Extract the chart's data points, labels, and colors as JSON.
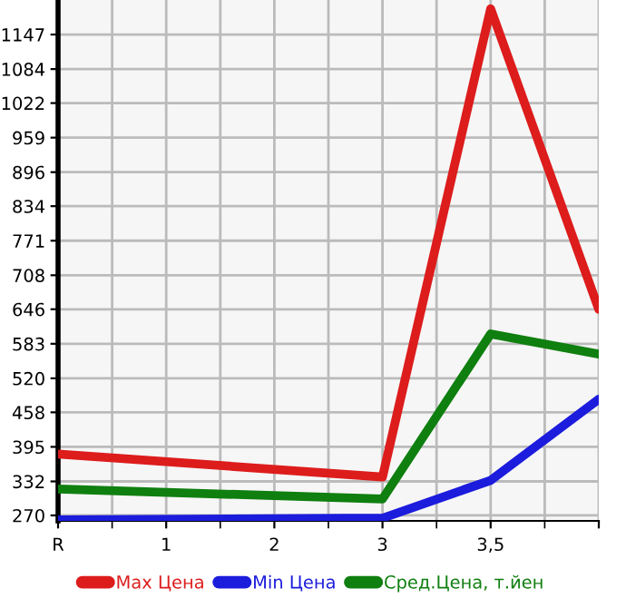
{
  "chart_data": {
    "type": "line",
    "categories": [
      "R",
      "1",
      "2",
      "3",
      "3,5",
      null
    ],
    "series": [
      {
        "name": "Max Цена",
        "color": "#dd1c1c",
        "values": [
          382,
          null,
          null,
          340,
          1194,
          646
        ]
      },
      {
        "name": "Min Цена",
        "color": "#1c1cdd",
        "values": [
          262,
          null,
          null,
          265,
          334,
          482
        ]
      },
      {
        "name": "Сред.Цена, т.йен",
        "color": "#0f7f0f",
        "values": [
          318,
          null,
          null,
          300,
          601,
          564
        ]
      }
    ],
    "ylim": [
      260,
      1210
    ],
    "yticks": [
      270,
      332,
      395,
      458,
      520,
      583,
      646,
      708,
      771,
      834,
      896,
      959,
      1022,
      1084,
      1147
    ],
    "grid": true,
    "legend": "bottom",
    "marker": "none",
    "line_style": "solid"
  }
}
